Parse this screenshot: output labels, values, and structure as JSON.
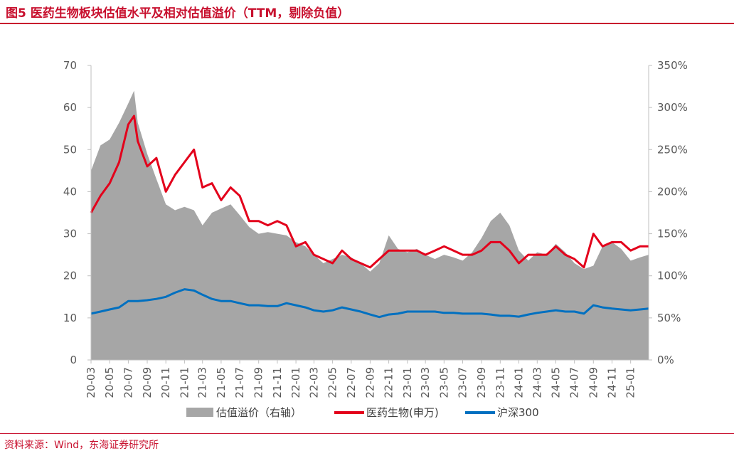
{
  "title": "图5  医药生物板块估值水平及相对估值溢价（TTM，剔除负值）",
  "source": "资料来源：Wind，东海证券研究所",
  "colors": {
    "title": "#c8102e",
    "premium_area": "#a6a6a6",
    "pharma_line": "#e3001b",
    "csi300_line": "#0070c0",
    "axis": "#bfbfbf",
    "text": "#595959"
  },
  "chart_data": {
    "type": "line",
    "x_tick_labels": [
      "20-03",
      "20-05",
      "20-07",
      "20-09",
      "20-11",
      "21-01",
      "21-03",
      "21-05",
      "21-07",
      "21-09",
      "21-11",
      "22-01",
      "22-03",
      "22-05",
      "22-07",
      "22-09",
      "22-11",
      "23-01",
      "23-03",
      "23-05",
      "23-07",
      "23-09",
      "23-11",
      "24-01",
      "24-03",
      "24-05",
      "24-07",
      "24-09",
      "24-11",
      "25-01"
    ],
    "x_range": [
      "2020-03",
      "2025-03"
    ],
    "y_left": {
      "ticks": [
        "0",
        "10",
        "20",
        "30",
        "40",
        "50",
        "60",
        "70"
      ],
      "ylim": [
        0,
        70
      ]
    },
    "y_right": {
      "ticks": [
        "0%",
        "50%",
        "100%",
        "150%",
        "200%",
        "250%",
        "300%",
        "350%"
      ],
      "ylim": [
        0,
        350
      ]
    },
    "grid": false,
    "legend_position": "bottom",
    "series": [
      {
        "name": "估值溢价（右轴）",
        "type": "area",
        "axis": "right",
        "points": [
          [
            "2020-03",
            225
          ],
          [
            "2020-04",
            255
          ],
          [
            "2020-05",
            262
          ],
          [
            "2020-06",
            282
          ],
          [
            "2020-07",
            305
          ],
          [
            "2020-07-20",
            320
          ],
          [
            "2020-08",
            282
          ],
          [
            "2020-09",
            245
          ],
          [
            "2020-10",
            215
          ],
          [
            "2020-11",
            185
          ],
          [
            "2020-12",
            178
          ],
          [
            "2021-01",
            182
          ],
          [
            "2021-02",
            178
          ],
          [
            "2021-03",
            160
          ],
          [
            "2021-04",
            175
          ],
          [
            "2021-05",
            180
          ],
          [
            "2021-06",
            185
          ],
          [
            "2021-07",
            172
          ],
          [
            "2021-08",
            158
          ],
          [
            "2021-09",
            150
          ],
          [
            "2021-10",
            152
          ],
          [
            "2021-11",
            150
          ],
          [
            "2021-12",
            148
          ],
          [
            "2022-01",
            140
          ],
          [
            "2022-02",
            135
          ],
          [
            "2022-03",
            125
          ],
          [
            "2022-04",
            115
          ],
          [
            "2022-05",
            120
          ],
          [
            "2022-06",
            125
          ],
          [
            "2022-07",
            122
          ],
          [
            "2022-08",
            115
          ],
          [
            "2022-09",
            105
          ],
          [
            "2022-10",
            115
          ],
          [
            "2022-11",
            148
          ],
          [
            "2022-12",
            132
          ],
          [
            "2023-01",
            128
          ],
          [
            "2023-02",
            132
          ],
          [
            "2023-03",
            125
          ],
          [
            "2023-04",
            120
          ],
          [
            "2023-05",
            125
          ],
          [
            "2023-06",
            122
          ],
          [
            "2023-07",
            118
          ],
          [
            "2023-08",
            128
          ],
          [
            "2023-09",
            145
          ],
          [
            "2023-10",
            165
          ],
          [
            "2023-11",
            175
          ],
          [
            "2023-12",
            160
          ],
          [
            "2024-01",
            130
          ],
          [
            "2024-02",
            118
          ],
          [
            "2024-03",
            128
          ],
          [
            "2024-04",
            125
          ],
          [
            "2024-05",
            138
          ],
          [
            "2024-06",
            128
          ],
          [
            "2024-07",
            115
          ],
          [
            "2024-08",
            108
          ],
          [
            "2024-09",
            112
          ],
          [
            "2024-10",
            135
          ],
          [
            "2024-11",
            140
          ],
          [
            "2024-12",
            132
          ],
          [
            "2025-01",
            118
          ],
          [
            "2025-02",
            122
          ],
          [
            "2025-03",
            125
          ]
        ]
      },
      {
        "name": "医药生物(申万)",
        "type": "line",
        "axis": "left",
        "points": [
          [
            "2020-03",
            35
          ],
          [
            "2020-04",
            39
          ],
          [
            "2020-05",
            42
          ],
          [
            "2020-06",
            47
          ],
          [
            "2020-07",
            56
          ],
          [
            "2020-07-20",
            58
          ],
          [
            "2020-08",
            52
          ],
          [
            "2020-09",
            46
          ],
          [
            "2020-10",
            48
          ],
          [
            "2020-11",
            40
          ],
          [
            "2020-12",
            44
          ],
          [
            "2021-01",
            47
          ],
          [
            "2021-02",
            50
          ],
          [
            "2021-03",
            41
          ],
          [
            "2021-04",
            42
          ],
          [
            "2021-05",
            38
          ],
          [
            "2021-06",
            41
          ],
          [
            "2021-07",
            39
          ],
          [
            "2021-08",
            33
          ],
          [
            "2021-09",
            33
          ],
          [
            "2021-10",
            32
          ],
          [
            "2021-11",
            33
          ],
          [
            "2021-12",
            32
          ],
          [
            "2022-01",
            27
          ],
          [
            "2022-02",
            28
          ],
          [
            "2022-03",
            25
          ],
          [
            "2022-04",
            24
          ],
          [
            "2022-05",
            23
          ],
          [
            "2022-06",
            26
          ],
          [
            "2022-07",
            24
          ],
          [
            "2022-08",
            23
          ],
          [
            "2022-09",
            22
          ],
          [
            "2022-10",
            24
          ],
          [
            "2022-11",
            26
          ],
          [
            "2022-12",
            26
          ],
          [
            "2023-01",
            26
          ],
          [
            "2023-02",
            26
          ],
          [
            "2023-03",
            25
          ],
          [
            "2023-04",
            26
          ],
          [
            "2023-05",
            27
          ],
          [
            "2023-06",
            26
          ],
          [
            "2023-07",
            25
          ],
          [
            "2023-08",
            25
          ],
          [
            "2023-09",
            26
          ],
          [
            "2023-10",
            28
          ],
          [
            "2023-11",
            28
          ],
          [
            "2023-12",
            26
          ],
          [
            "2024-01",
            23
          ],
          [
            "2024-02",
            25
          ],
          [
            "2024-03",
            25
          ],
          [
            "2024-04",
            25
          ],
          [
            "2024-05",
            27
          ],
          [
            "2024-06",
            25
          ],
          [
            "2024-07",
            24
          ],
          [
            "2024-08",
            22
          ],
          [
            "2024-09",
            30
          ],
          [
            "2024-10",
            27
          ],
          [
            "2024-11",
            28
          ],
          [
            "2024-12",
            28
          ],
          [
            "2025-01",
            26
          ],
          [
            "2025-02",
            27
          ],
          [
            "2025-03",
            27
          ]
        ]
      },
      {
        "name": "沪深300",
        "type": "line",
        "axis": "left",
        "points": [
          [
            "2020-03",
            11
          ],
          [
            "2020-04",
            11.5
          ],
          [
            "2020-05",
            12
          ],
          [
            "2020-06",
            12.5
          ],
          [
            "2020-07",
            14
          ],
          [
            "2020-08",
            14
          ],
          [
            "2020-09",
            14.2
          ],
          [
            "2020-10",
            14.5
          ],
          [
            "2020-11",
            15
          ],
          [
            "2020-12",
            16
          ],
          [
            "2021-01",
            16.8
          ],
          [
            "2021-02",
            16.5
          ],
          [
            "2021-03",
            15.5
          ],
          [
            "2021-04",
            14.5
          ],
          [
            "2021-05",
            14
          ],
          [
            "2021-06",
            14
          ],
          [
            "2021-07",
            13.5
          ],
          [
            "2021-08",
            13
          ],
          [
            "2021-09",
            13
          ],
          [
            "2021-10",
            12.8
          ],
          [
            "2021-11",
            12.8
          ],
          [
            "2021-12",
            13.5
          ],
          [
            "2022-01",
            13
          ],
          [
            "2022-02",
            12.5
          ],
          [
            "2022-03",
            11.8
          ],
          [
            "2022-04",
            11.5
          ],
          [
            "2022-05",
            11.8
          ],
          [
            "2022-06",
            12.5
          ],
          [
            "2022-07",
            12
          ],
          [
            "2022-08",
            11.5
          ],
          [
            "2022-09",
            10.8
          ],
          [
            "2022-10",
            10.2
          ],
          [
            "2022-11",
            10.8
          ],
          [
            "2022-12",
            11
          ],
          [
            "2023-01",
            11.5
          ],
          [
            "2023-02",
            11.5
          ],
          [
            "2023-03",
            11.5
          ],
          [
            "2023-04",
            11.5
          ],
          [
            "2023-05",
            11.2
          ],
          [
            "2023-06",
            11.2
          ],
          [
            "2023-07",
            11
          ],
          [
            "2023-08",
            11
          ],
          [
            "2023-09",
            11
          ],
          [
            "2023-10",
            10.8
          ],
          [
            "2023-11",
            10.5
          ],
          [
            "2023-12",
            10.5
          ],
          [
            "2024-01",
            10.3
          ],
          [
            "2024-02",
            10.8
          ],
          [
            "2024-03",
            11.2
          ],
          [
            "2024-04",
            11.5
          ],
          [
            "2024-05",
            11.8
          ],
          [
            "2024-06",
            11.5
          ],
          [
            "2024-07",
            11.5
          ],
          [
            "2024-08",
            11
          ],
          [
            "2024-09",
            13
          ],
          [
            "2024-10",
            12.5
          ],
          [
            "2024-11",
            12.2
          ],
          [
            "2024-12",
            12
          ],
          [
            "2025-01",
            11.8
          ],
          [
            "2025-02",
            12
          ],
          [
            "2025-03",
            12.2
          ]
        ]
      }
    ]
  }
}
